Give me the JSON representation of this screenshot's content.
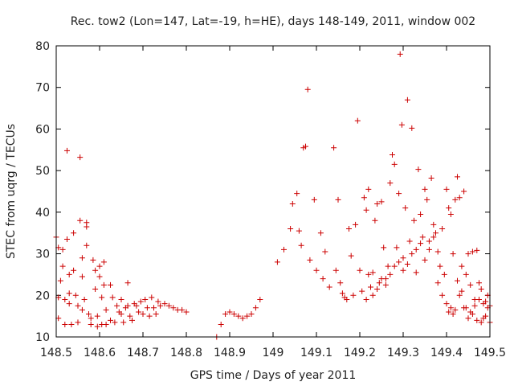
{
  "chart_data": {
    "type": "scatter",
    "title": "Rec. tow2 (Lon=147, Lat=-19, h=HE), days 148-149, 2011, window 002",
    "xlabel": "GPS time / Days of year 2011",
    "ylabel": "STEC from uqrg / TECUs",
    "xlim": [
      148.5,
      149.5
    ],
    "ylim": [
      10,
      80
    ],
    "xticks": [
      148.5,
      148.6,
      148.7,
      148.8,
      148.9,
      149,
      149.1,
      149.2,
      149.3,
      149.4,
      149.5
    ],
    "xtick_labels": [
      "148.5",
      "148.6",
      "148.7",
      "148.8",
      "148.9",
      "149",
      "149.1",
      "149.2",
      "149.3",
      "149.4",
      "149.5"
    ],
    "yticks": [
      10,
      20,
      30,
      40,
      50,
      60,
      70,
      80
    ],
    "ytick_labels": [
      "10",
      "20",
      "30",
      "40",
      "50",
      "60",
      "70",
      "80"
    ],
    "grid": false,
    "marker": "+",
    "color": "#cc0000",
    "points": [
      [
        148.5,
        34
      ],
      [
        148.505,
        31.5
      ],
      [
        148.505,
        19.5
      ],
      [
        148.505,
        14.5
      ],
      [
        148.51,
        23.5
      ],
      [
        148.515,
        27
      ],
      [
        148.515,
        31
      ],
      [
        148.52,
        19
      ],
      [
        148.52,
        13
      ],
      [
        148.525,
        54.8
      ],
      [
        148.525,
        33.5
      ],
      [
        148.53,
        25
      ],
      [
        148.53,
        20.5
      ],
      [
        148.53,
        18
      ],
      [
        148.535,
        13
      ],
      [
        148.54,
        35
      ],
      [
        148.54,
        26
      ],
      [
        148.545,
        20
      ],
      [
        148.55,
        17.5
      ],
      [
        148.55,
        13.5
      ],
      [
        148.555,
        53.2
      ],
      [
        148.555,
        38
      ],
      [
        148.56,
        29
      ],
      [
        148.56,
        24.5
      ],
      [
        148.56,
        16.5
      ],
      [
        148.565,
        19
      ],
      [
        148.57,
        37.5
      ],
      [
        148.57,
        36.5
      ],
      [
        148.57,
        32
      ],
      [
        148.575,
        15.5
      ],
      [
        148.58,
        14.5
      ],
      [
        148.58,
        13
      ],
      [
        148.585,
        28.5
      ],
      [
        148.59,
        26
      ],
      [
        148.59,
        21.5
      ],
      [
        148.595,
        15
      ],
      [
        148.595,
        12.5
      ],
      [
        148.6,
        27
      ],
      [
        148.6,
        24.5
      ],
      [
        148.605,
        19.5
      ],
      [
        148.605,
        13
      ],
      [
        148.61,
        28
      ],
      [
        148.61,
        22.5
      ],
      [
        148.615,
        16.5
      ],
      [
        148.615,
        13
      ],
      [
        148.625,
        22.5
      ],
      [
        148.625,
        14
      ],
      [
        148.63,
        19.5
      ],
      [
        148.635,
        13.5
      ],
      [
        148.64,
        17.5
      ],
      [
        148.645,
        16
      ],
      [
        148.65,
        19
      ],
      [
        148.65,
        15.5
      ],
      [
        148.655,
        13.5
      ],
      [
        148.66,
        17
      ],
      [
        148.665,
        23
      ],
      [
        148.665,
        17.5
      ],
      [
        148.67,
        15
      ],
      [
        148.675,
        14
      ],
      [
        148.68,
        18
      ],
      [
        148.685,
        17.5
      ],
      [
        148.69,
        16
      ],
      [
        148.695,
        18.5
      ],
      [
        148.7,
        15.5
      ],
      [
        148.705,
        19
      ],
      [
        148.71,
        17
      ],
      [
        148.715,
        15
      ],
      [
        148.72,
        19.5
      ],
      [
        148.725,
        17
      ],
      [
        148.73,
        15.5
      ],
      [
        148.735,
        18.5
      ],
      [
        148.74,
        17.5
      ],
      [
        148.75,
        18
      ],
      [
        148.76,
        17.5
      ],
      [
        148.77,
        17
      ],
      [
        148.78,
        16.5
      ],
      [
        148.79,
        16.5
      ],
      [
        148.8,
        16
      ],
      [
        148.87,
        10
      ],
      [
        148.88,
        13
      ],
      [
        148.89,
        15.5
      ],
      [
        148.9,
        16
      ],
      [
        148.91,
        15.5
      ],
      [
        148.92,
        15
      ],
      [
        148.93,
        14.5
      ],
      [
        148.94,
        15
      ],
      [
        148.95,
        15.5
      ],
      [
        148.96,
        17
      ],
      [
        148.97,
        19
      ],
      [
        149.01,
        28
      ],
      [
        149.025,
        31
      ],
      [
        149.04,
        36
      ],
      [
        149.045,
        42
      ],
      [
        149.055,
        44.5
      ],
      [
        149.06,
        35.5
      ],
      [
        149.065,
        32
      ],
      [
        149.07,
        55.5
      ],
      [
        149.075,
        55.8
      ],
      [
        149.08,
        69.5
      ],
      [
        149.085,
        28.5
      ],
      [
        149.095,
        43
      ],
      [
        149.1,
        26
      ],
      [
        149.11,
        35
      ],
      [
        149.115,
        24
      ],
      [
        149.12,
        30.5
      ],
      [
        149.13,
        22
      ],
      [
        149.14,
        55.5
      ],
      [
        149.145,
        26
      ],
      [
        149.15,
        43
      ],
      [
        149.155,
        23
      ],
      [
        149.16,
        20.5
      ],
      [
        149.165,
        19.5
      ],
      [
        149.17,
        19
      ],
      [
        149.175,
        36
      ],
      [
        149.18,
        29.5
      ],
      [
        149.185,
        20
      ],
      [
        149.19,
        37
      ],
      [
        149.195,
        62
      ],
      [
        149.2,
        26
      ],
      [
        149.205,
        21
      ],
      [
        149.21,
        43.5
      ],
      [
        149.215,
        40.5
      ],
      [
        149.22,
        45.5
      ],
      [
        149.225,
        22
      ],
      [
        149.23,
        25.5
      ],
      [
        149.235,
        38
      ],
      [
        149.24,
        42
      ],
      [
        149.245,
        23
      ],
      [
        149.25,
        42.5
      ],
      [
        149.255,
        31.5
      ],
      [
        149.26,
        24
      ],
      [
        149.265,
        27
      ],
      [
        149.27,
        47
      ],
      [
        149.275,
        53.8
      ],
      [
        149.28,
        51.5
      ],
      [
        149.285,
        31.5
      ],
      [
        149.29,
        44.5
      ],
      [
        149.293,
        78
      ],
      [
        149.297,
        61
      ],
      [
        149.3,
        26
      ],
      [
        149.305,
        41
      ],
      [
        149.31,
        67
      ],
      [
        149.315,
        33
      ],
      [
        149.32,
        60.2
      ],
      [
        149.325,
        38
      ],
      [
        149.33,
        31
      ],
      [
        149.335,
        50.3
      ],
      [
        149.34,
        39.5
      ],
      [
        149.345,
        34
      ],
      [
        149.35,
        45.5
      ],
      [
        149.355,
        43
      ],
      [
        149.36,
        33
      ],
      [
        149.365,
        48.2
      ],
      [
        149.37,
        37
      ],
      [
        149.375,
        35
      ],
      [
        149.38,
        30.5
      ],
      [
        149.385,
        27
      ],
      [
        149.39,
        36
      ],
      [
        149.395,
        25
      ],
      [
        149.4,
        45.5
      ],
      [
        149.405,
        41
      ],
      [
        149.41,
        39.5
      ],
      [
        149.415,
        30
      ],
      [
        149.42,
        43
      ],
      [
        149.425,
        48.5
      ],
      [
        149.43,
        43.5
      ],
      [
        149.435,
        27
      ],
      [
        149.44,
        45
      ],
      [
        149.445,
        25
      ],
      [
        149.45,
        30
      ],
      [
        149.455,
        22.5
      ],
      [
        149.46,
        30.5
      ],
      [
        149.465,
        19
      ],
      [
        149.47,
        30.8
      ],
      [
        149.475,
        23
      ],
      [
        149.48,
        21.5
      ],
      [
        149.485,
        18
      ],
      [
        149.49,
        18.5
      ],
      [
        149.495,
        17
      ],
      [
        149.5,
        17.5
      ],
      [
        149.5,
        13.5
      ],
      [
        149.215,
        19
      ],
      [
        149.22,
        25
      ],
      [
        149.23,
        20
      ],
      [
        149.24,
        21.5
      ],
      [
        149.25,
        24
      ],
      [
        149.26,
        22.5
      ],
      [
        149.27,
        25
      ],
      [
        149.28,
        27
      ],
      [
        149.29,
        28
      ],
      [
        149.3,
        29
      ],
      [
        149.31,
        27.5
      ],
      [
        149.32,
        30
      ],
      [
        149.33,
        25.5
      ],
      [
        149.34,
        32.5
      ],
      [
        149.35,
        28.5
      ],
      [
        149.36,
        31
      ],
      [
        149.37,
        34
      ],
      [
        149.38,
        23
      ],
      [
        149.39,
        20
      ],
      [
        149.4,
        18
      ],
      [
        149.41,
        17
      ],
      [
        149.42,
        16.5
      ],
      [
        149.43,
        20
      ],
      [
        149.44,
        17
      ],
      [
        149.45,
        14.5
      ],
      [
        149.46,
        15.5
      ],
      [
        149.47,
        14
      ],
      [
        149.48,
        13.5
      ],
      [
        149.49,
        15
      ],
      [
        149.405,
        16
      ],
      [
        149.415,
        15.5
      ],
      [
        149.425,
        23.5
      ],
      [
        149.435,
        21
      ],
      [
        149.445,
        17
      ],
      [
        149.455,
        16
      ],
      [
        149.465,
        17.5
      ],
      [
        149.475,
        19
      ],
      [
        149.485,
        14.5
      ],
      [
        149.495,
        20
      ]
    ]
  }
}
